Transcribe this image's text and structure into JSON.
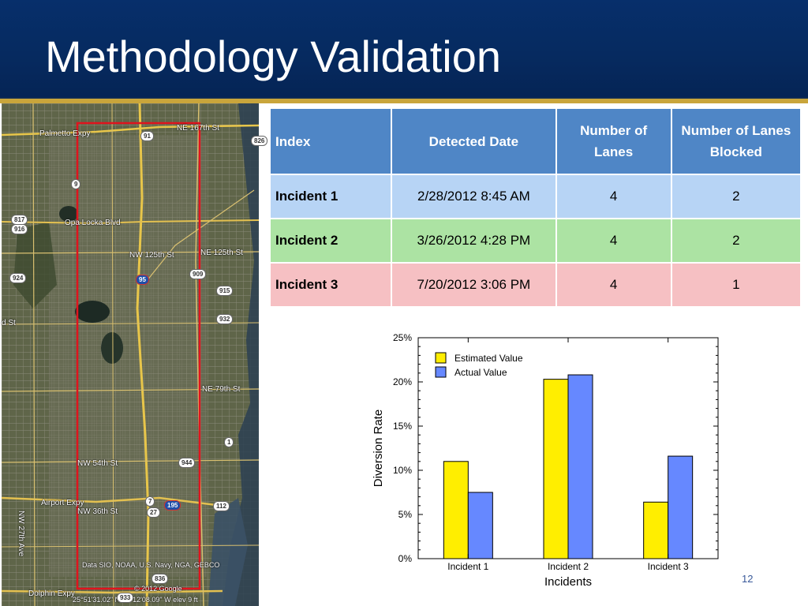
{
  "slide": {
    "title": "Methodology Validation",
    "page_number": "12"
  },
  "map": {
    "labels": [
      "NE 167th St",
      "Palmetto Expy",
      "Opa Locka Blvd",
      "NW 125th St",
      "NE 125th St",
      "NE 79th St",
      "NW 54th St",
      "Airport Expy",
      "NW 36th St",
      "NW 27th Ave",
      "Data SIO, NOAA, U.S. Navy, NGA, GEBCO",
      "© 2012 Google",
      "25°51'31.02\" N  80°12'08.09\" W  elev  9 ft",
      "d St",
      "Dolphin Expy"
    ],
    "shields": [
      "91",
      "826",
      "9",
      "817",
      "916",
      "95",
      "909",
      "924",
      "915",
      "932",
      "1",
      "944",
      "7",
      "27",
      "195",
      "112",
      "836",
      "933"
    ]
  },
  "table": {
    "headers": [
      "Index",
      "Detected Date",
      "Number of Lanes",
      "Number of Lanes Blocked"
    ],
    "rows": [
      {
        "index": "Incident 1",
        "date": "2/28/2012 8:45 AM",
        "lanes": "4",
        "blocked": "2"
      },
      {
        "index": "Incident 2",
        "date": "3/26/2012 4:28 PM",
        "lanes": "4",
        "blocked": "2"
      },
      {
        "index": "Incident 3",
        "date": "7/20/2012 3:06 PM",
        "lanes": "4",
        "blocked": "1"
      }
    ]
  },
  "chart_data": {
    "type": "bar",
    "categories": [
      "Incident 1",
      "Incident 2",
      "Incident 3"
    ],
    "series": [
      {
        "name": "Estimated Value",
        "values": [
          11.0,
          20.3,
          6.4
        ],
        "color": "#ffee00"
      },
      {
        "name": "Actual Value",
        "values": [
          7.5,
          20.8,
          11.6
        ],
        "color": "#6688ff"
      }
    ],
    "xlabel": "Incidents",
    "ylabel": "Diversion Rate",
    "ylim": [
      0,
      25
    ],
    "yticks": [
      "0%",
      "5%",
      "10%",
      "15%",
      "20%",
      "25%"
    ],
    "ytick_values": [
      0,
      5,
      10,
      15,
      20,
      25
    ],
    "grid": false,
    "legend_position": "top-left"
  }
}
